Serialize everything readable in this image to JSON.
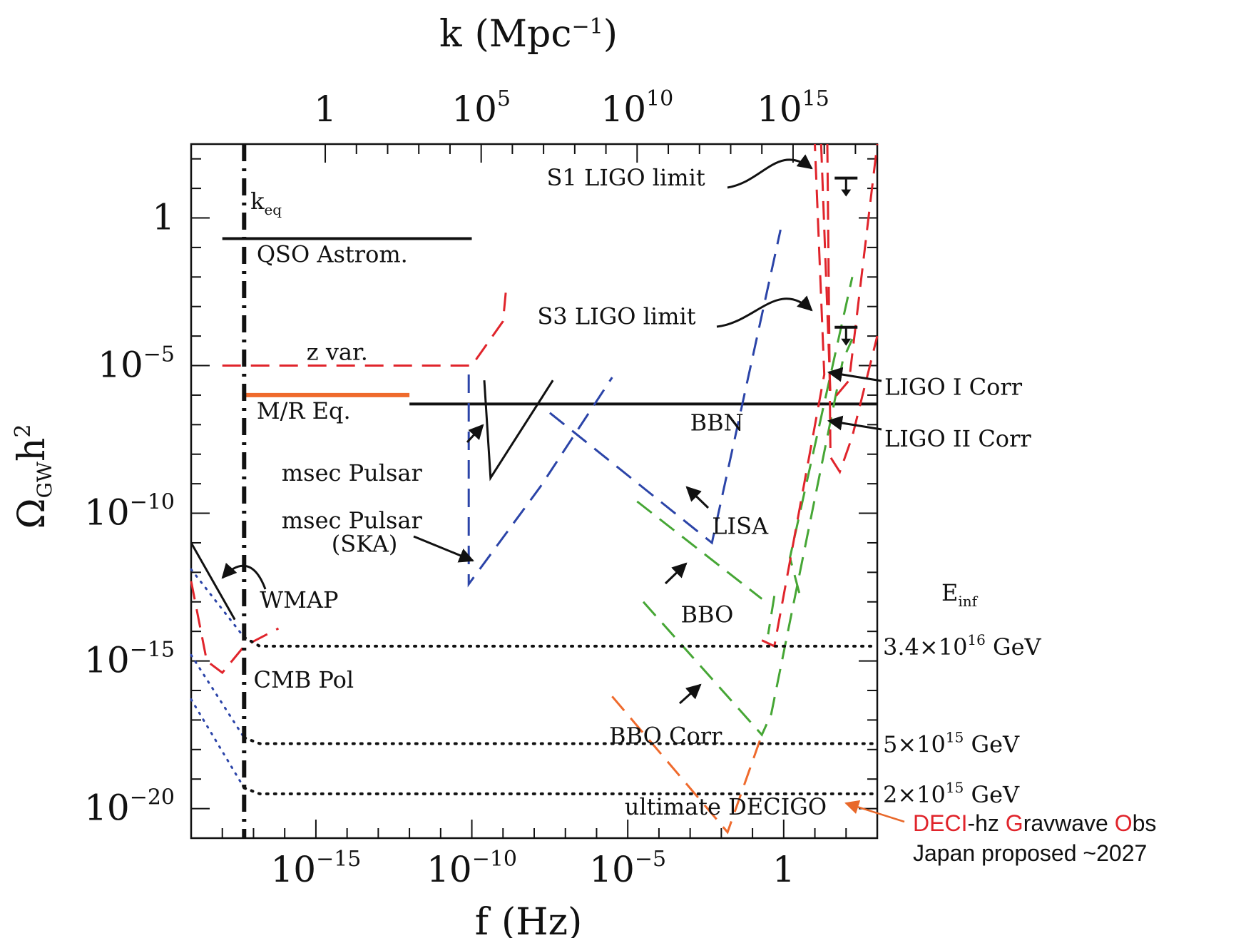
{
  "chart_data": {
    "type": "line",
    "title": "",
    "xlabel_bottom": {
      "base": "f",
      "unit": "(Hz)"
    },
    "xlabel_top": {
      "base": "k",
      "unit": "(Mpc",
      "unit_sup": "−1",
      "unit_close": ")"
    },
    "ylabel": {
      "base": "Ω",
      "sub": "GW",
      "mid": "h",
      "sup": "2"
    },
    "x_log_range": [
      -19,
      3
    ],
    "y_log_range": [
      -21,
      2.5
    ],
    "x_ticks": [
      {
        "label": "10",
        "sup": "−15",
        "log": -15
      },
      {
        "label": "10",
        "sup": "−10",
        "log": -10
      },
      {
        "label": "10",
        "sup": "−5",
        "log": -5
      },
      {
        "label": "1",
        "sup": "",
        "log": 0
      }
    ],
    "top_ticks": [
      {
        "label": "1",
        "sup": "",
        "flog": -14.7
      },
      {
        "label": "10",
        "sup": "5",
        "flog": -9.7
      },
      {
        "label": "10",
        "sup": "10",
        "flog": -4.7
      },
      {
        "label": "10",
        "sup": "15",
        "flog": 0.3
      }
    ],
    "y_ticks": [
      {
        "label": "1",
        "sup": "",
        "log": 0
      },
      {
        "label": "10",
        "sup": "−5",
        "log": -5
      },
      {
        "label": "10",
        "sup": "−10",
        "log": -10
      },
      {
        "label": "10",
        "sup": "−15",
        "log": -15
      },
      {
        "label": "10",
        "sup": "−20",
        "log": -20
      }
    ],
    "colors": {
      "black": "#111111",
      "red": "#e0242b",
      "blue": "#2b44a8",
      "green": "#46a635",
      "orange": "#ef6a2c",
      "accent_orange": "#e8682a"
    },
    "series": [
      {
        "style": "solid",
        "color": "black",
        "width": 4,
        "points": [
          [
            -18.0,
            -0.7
          ],
          [
            -10.0,
            -0.7
          ]
        ]
      },
      {
        "style": "solid",
        "color": "orange",
        "width": 6,
        "points": [
          [
            -17.3,
            -6.0
          ],
          [
            -12.0,
            -6.0
          ]
        ]
      },
      {
        "style": "solid",
        "color": "black",
        "width": 4,
        "points": [
          [
            -12.0,
            -6.3
          ],
          [
            3.0,
            -6.3
          ]
        ]
      },
      {
        "style": "dashed",
        "color": "red",
        "width": 3,
        "points": [
          [
            -18.0,
            -5.0
          ],
          [
            -10.0,
            -5.0
          ],
          [
            -9.0,
            -3.5
          ],
          [
            -8.9,
            -2.4
          ]
        ]
      },
      {
        "style": "solid",
        "color": "black",
        "width": 3,
        "points": [
          [
            -9.6,
            -5.5
          ],
          [
            -9.4,
            -8.8
          ],
          [
            -7.4,
            -5.5
          ]
        ]
      },
      {
        "style": "dashed",
        "color": "blue",
        "width": 3,
        "points": [
          [
            -10.1,
            -5.3
          ],
          [
            -10.1,
            -12.4
          ],
          [
            -7.8,
            -9.1
          ],
          [
            -5.5,
            -5.4
          ]
        ]
      },
      {
        "style": "dashed",
        "color": "blue",
        "width": 3,
        "points": [
          [
            -7.5,
            -6.6
          ],
          [
            -2.3,
            -11.0
          ],
          [
            -0.1,
            -0.4
          ]
        ]
      },
      {
        "style": "dashed",
        "color": "green",
        "width": 3,
        "points": [
          [
            -4.7,
            -9.6
          ],
          [
            -0.7,
            -12.9
          ]
        ]
      },
      {
        "style": "dashed",
        "color": "green",
        "width": 3,
        "points": [
          [
            -4.5,
            -13.0
          ],
          [
            -0.7,
            -17.5
          ],
          [
            -0.4,
            -16.8
          ],
          [
            1.9,
            -4.8
          ],
          [
            2.2,
            -4.1
          ]
        ]
      },
      {
        "style": "dashed",
        "color": "green",
        "width": 3,
        "points": [
          [
            -0.3,
            -12.8
          ],
          [
            -0.5,
            -14.1
          ]
        ]
      },
      {
        "style": "dashed",
        "color": "green",
        "width": 3,
        "points": [
          [
            0.5,
            -12.7
          ],
          [
            0.2,
            -11.5
          ],
          [
            2.2,
            -2.0
          ]
        ]
      },
      {
        "style": "dashed",
        "color": "orange",
        "width": 3,
        "points": [
          [
            -5.5,
            -16.2
          ],
          [
            -1.8,
            -20.8
          ],
          [
            -0.7,
            -17.5
          ]
        ]
      },
      {
        "style": "dashed",
        "color": "red",
        "width": 3,
        "points": [
          [
            -0.7,
            -14.3
          ],
          [
            -0.3,
            -14.5
          ],
          [
            1.3,
            -5.3
          ],
          [
            1.0,
            2.5
          ]
        ]
      },
      {
        "style": "dashed",
        "color": "red",
        "width": 3,
        "points": [
          [
            1.2,
            2.5
          ],
          [
            1.5,
            -6.0
          ],
          [
            1.7,
            -6.0
          ],
          [
            2.1,
            -5.5
          ],
          [
            3.0,
            2.5
          ]
        ]
      },
      {
        "style": "dashed",
        "color": "red",
        "width": 3,
        "points": [
          [
            1.4,
            2.5
          ],
          [
            1.5,
            -8.1
          ],
          [
            1.8,
            -8.6
          ],
          [
            2.2,
            -7.4
          ],
          [
            3.0,
            -4.0
          ]
        ]
      },
      {
        "style": "dashed",
        "color": "red",
        "width": 3,
        "points": [
          [
            -19.0,
            -12.3
          ],
          [
            -18.5,
            -15.0
          ],
          [
            -18.0,
            -15.4
          ],
          [
            -17.3,
            -14.5
          ],
          [
            -16.2,
            -13.9
          ]
        ]
      },
      {
        "style": "solid",
        "color": "black",
        "width": 3,
        "points": [
          [
            -19.0,
            -11.0
          ],
          [
            -17.6,
            -13.6
          ]
        ]
      },
      {
        "style": "dotted",
        "color": "blue",
        "width": 3,
        "points": [
          [
            -19.0,
            -11.9
          ],
          [
            -17.3,
            -14.2
          ]
        ]
      },
      {
        "style": "dotted",
        "color": "blue",
        "width": 3,
        "points": [
          [
            -19.0,
            -14.8
          ],
          [
            -17.3,
            -17.6
          ]
        ]
      },
      {
        "style": "dotted",
        "color": "blue",
        "width": 3,
        "points": [
          [
            -19.0,
            -16.3
          ],
          [
            -17.3,
            -19.3
          ]
        ]
      },
      {
        "style": "dotted",
        "color": "black",
        "width": 4,
        "points": [
          [
            -17.3,
            -14.2
          ],
          [
            -16.8,
            -14.5
          ],
          [
            3.0,
            -14.5
          ]
        ]
      },
      {
        "style": "dotted",
        "color": "black",
        "width": 4,
        "points": [
          [
            -17.3,
            -17.6
          ],
          [
            -16.8,
            -17.8
          ],
          [
            3.0,
            -17.8
          ]
        ]
      },
      {
        "style": "dotted",
        "color": "black",
        "width": 4,
        "points": [
          [
            -17.3,
            -19.3
          ],
          [
            -16.8,
            -19.5
          ],
          [
            3.0,
            -19.5
          ]
        ]
      },
      {
        "style": "dashdot",
        "color": "black",
        "width": 6,
        "points": [
          [
            -17.3,
            2.5
          ],
          [
            -17.3,
            -21.0
          ]
        ]
      }
    ],
    "limit_markers": [
      {
        "name": "s1-ligo-limit-marker",
        "xlog": 2.0,
        "ylog": 1.35
      },
      {
        "name": "s3-ligo-limit-marker",
        "xlog": 2.0,
        "ylog": -3.7
      }
    ],
    "annotations": [
      {
        "name": "k-eq",
        "text": "k",
        "sub": "eq",
        "xlog": -17.1,
        "ylog": 0.3
      },
      {
        "name": "qso-astrom",
        "text": "QSO Astrom.",
        "xlog": -16.9,
        "ylog": -1.5
      },
      {
        "name": "z-var",
        "text": "z var.",
        "xlog": -15.3,
        "ylog": -4.8
      },
      {
        "name": "mr-eq",
        "text": "M/R Eq.",
        "xlog": -16.9,
        "ylog": -6.8
      },
      {
        "name": "bbn",
        "text": "BBN",
        "xlog": -3.0,
        "ylog": -7.2
      },
      {
        "name": "msec-pulsar",
        "text": "msec Pulsar",
        "xlog": -16.1,
        "ylog": -8.9
      },
      {
        "name": "msec-pulsar-ska-1",
        "text": "msec Pulsar",
        "xlog": -16.1,
        "ylog": -10.5
      },
      {
        "name": "msec-pulsar-ska-2",
        "text": "(SKA)",
        "xlog": -14.5,
        "ylog": -11.3
      },
      {
        "name": "wmap",
        "text": "WMAP",
        "xlog": -16.8,
        "ylog": -13.2
      },
      {
        "name": "cmb-pol",
        "text": "CMB Pol",
        "xlog": -17.0,
        "ylog": -15.9
      },
      {
        "name": "s1-ligo-limit",
        "text": "S1 LIGO limit",
        "xlog": -7.6,
        "ylog": 1.1
      },
      {
        "name": "s3-ligo-limit",
        "text": "S3 LIGO limit",
        "xlog": -7.9,
        "ylog": -3.6
      },
      {
        "name": "lisa",
        "text": "LISA",
        "xlog": -2.3,
        "ylog": -10.7
      },
      {
        "name": "bbo",
        "text": "BBO",
        "xlog": -3.3,
        "ylog": -13.7
      },
      {
        "name": "bbo-corr",
        "text": "BBO Corr",
        "xlog": -5.6,
        "ylog": -17.8
      },
      {
        "name": "ultimate-decigo",
        "text": "ultimate DECIGO",
        "xlog": -5.1,
        "ylog": -20.2
      }
    ],
    "right_labels": [
      {
        "name": "ligo-i-corr",
        "text": "LIGO I Corr",
        "ylog": -5.7
      },
      {
        "name": "ligo-ii-corr",
        "text": "LIGO II Corr",
        "ylog": -7.45
      }
    ],
    "e_inf_label": {
      "text": "E",
      "sub": "inf"
    },
    "energy_labels": [
      {
        "name": "e-inf-3-4e16",
        "pre": "3.4×10",
        "sup": "16",
        "post": " GeV",
        "ylog": -14.5
      },
      {
        "name": "e-inf-5e15",
        "pre": "5×10",
        "sup": "15",
        "post": " GeV",
        "ylog": -17.8
      },
      {
        "name": "e-inf-2e15",
        "pre": "2×10",
        "sup": "15",
        "post": " GeV",
        "ylog": -19.5
      }
    ]
  },
  "decigo_note": {
    "part1_red": "DECI",
    "part1_rest": "-hz ",
    "part2_red": "G",
    "part2_rest": "ravwave ",
    "part3_red": "O",
    "part3_rest": "bs",
    "line2": "Japan proposed ~2027"
  }
}
